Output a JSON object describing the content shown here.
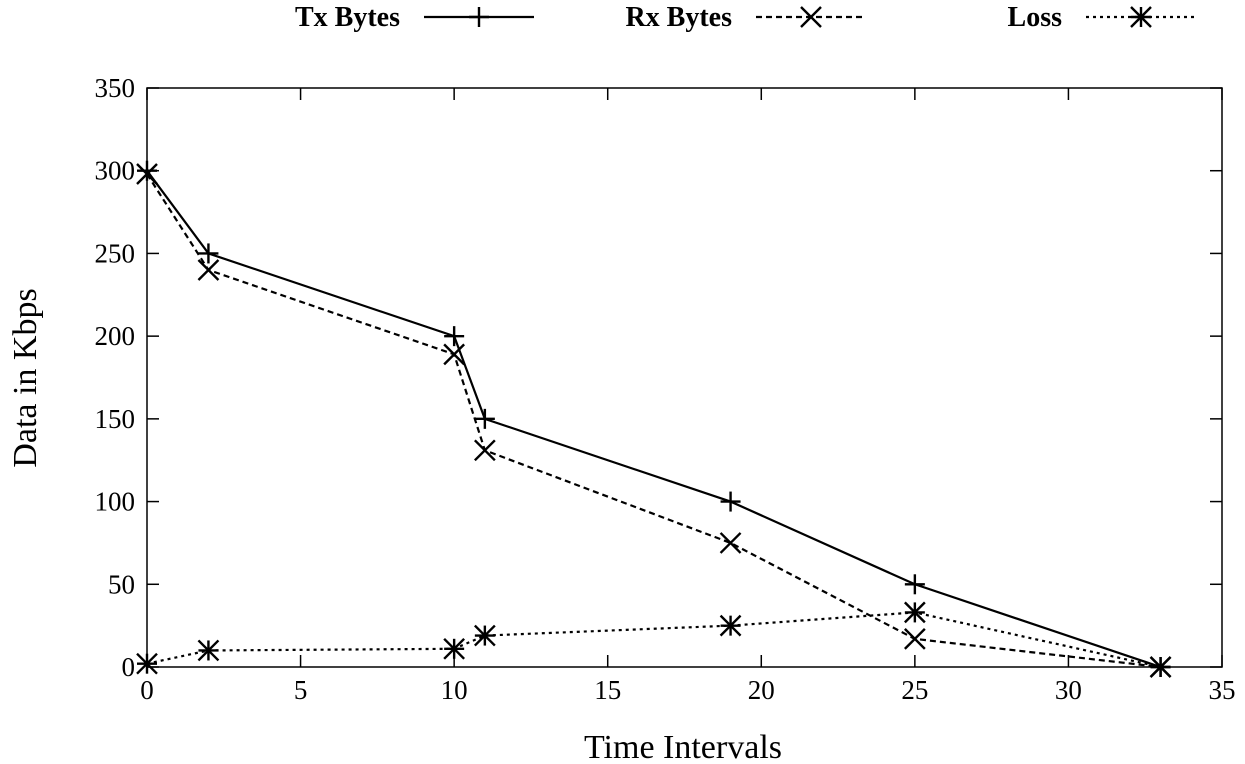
{
  "chart_data": {
    "type": "line",
    "title": "",
    "xlabel": "Time Intervals",
    "ylabel": "Data in Kbps",
    "xlim": [
      0,
      35
    ],
    "ylim": [
      0,
      350
    ],
    "xticks": [
      0,
      5,
      10,
      15,
      20,
      25,
      30,
      35
    ],
    "yticks": [
      0,
      50,
      100,
      150,
      200,
      250,
      300,
      350
    ],
    "grid": false,
    "legend_position": "top",
    "series": [
      {
        "name": "Tx Bytes",
        "line_style": "solid",
        "marker": "plus",
        "color": "#000000",
        "x": [
          0,
          2,
          10,
          11,
          19,
          25,
          33
        ],
        "y": [
          300,
          250,
          200,
          150,
          100,
          50,
          0
        ]
      },
      {
        "name": "Rx Bytes",
        "line_style": "dashed",
        "marker": "cross",
        "color": "#000000",
        "x": [
          0,
          2,
          10,
          11,
          19,
          25,
          33
        ],
        "y": [
          298,
          240,
          189,
          131,
          75,
          17,
          0
        ]
      },
      {
        "name": "Loss",
        "line_style": "dotted",
        "marker": "star",
        "color": "#000000",
        "x": [
          0,
          2,
          10,
          11,
          19,
          25,
          33
        ],
        "y": [
          2,
          10,
          11,
          19,
          25,
          33,
          0
        ]
      }
    ]
  }
}
